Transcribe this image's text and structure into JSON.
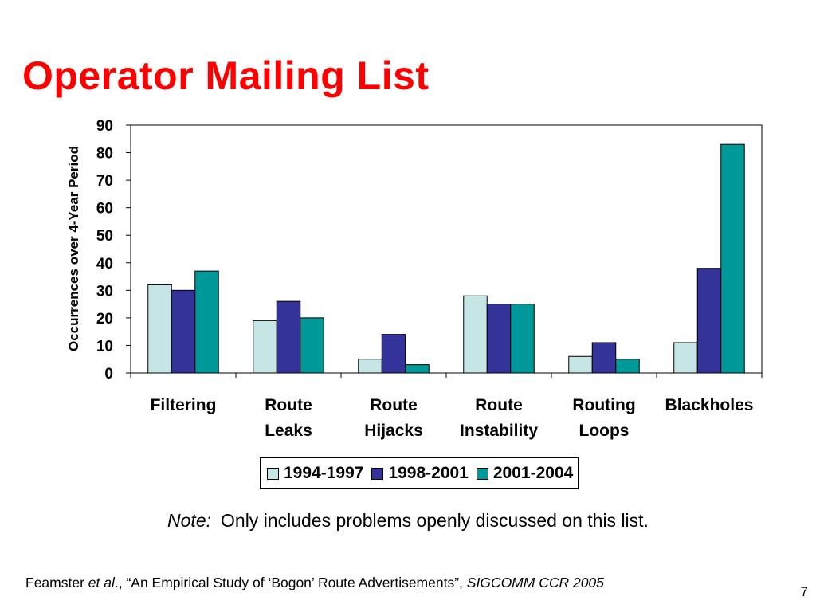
{
  "slide": {
    "title": "Operator Mailing List",
    "note_prefix": "Note:",
    "note_text": "Only includes problems openly discussed on this list.",
    "citation": {
      "author": "Feamster ",
      "etal": "et al",
      "after_etal": "., “An Empirical Study of ‘Bogon’ Route Advertisements”, ",
      "venue": "SIGCOMM CCR 2005"
    },
    "page_number": "7"
  },
  "chart_data": {
    "type": "bar",
    "ylabel": "Occurrences over 4-Year Period",
    "xlabel": "",
    "ylim": [
      0,
      90
    ],
    "yticks": [
      "0",
      "10",
      "20",
      "30",
      "40",
      "50",
      "60",
      "70",
      "80",
      "90"
    ],
    "categories": [
      [
        "Filtering"
      ],
      [
        "Route",
        "Leaks"
      ],
      [
        "Route",
        "Hijacks"
      ],
      [
        "Route",
        "Instability"
      ],
      [
        "Routing",
        "Loops"
      ],
      [
        "Blackholes"
      ]
    ],
    "series": [
      {
        "name": "1994-1997",
        "color": "#c6e6e6",
        "values": [
          32,
          19,
          5,
          28,
          6,
          11
        ]
      },
      {
        "name": "1998-2001",
        "color": "#333399",
        "values": [
          30,
          26,
          14,
          25,
          11,
          38
        ]
      },
      {
        "name": "2001-2004",
        "color": "#009999",
        "values": [
          37,
          20,
          3,
          25,
          5,
          83
        ]
      }
    ],
    "grid": false,
    "legend_position": "bottom"
  }
}
